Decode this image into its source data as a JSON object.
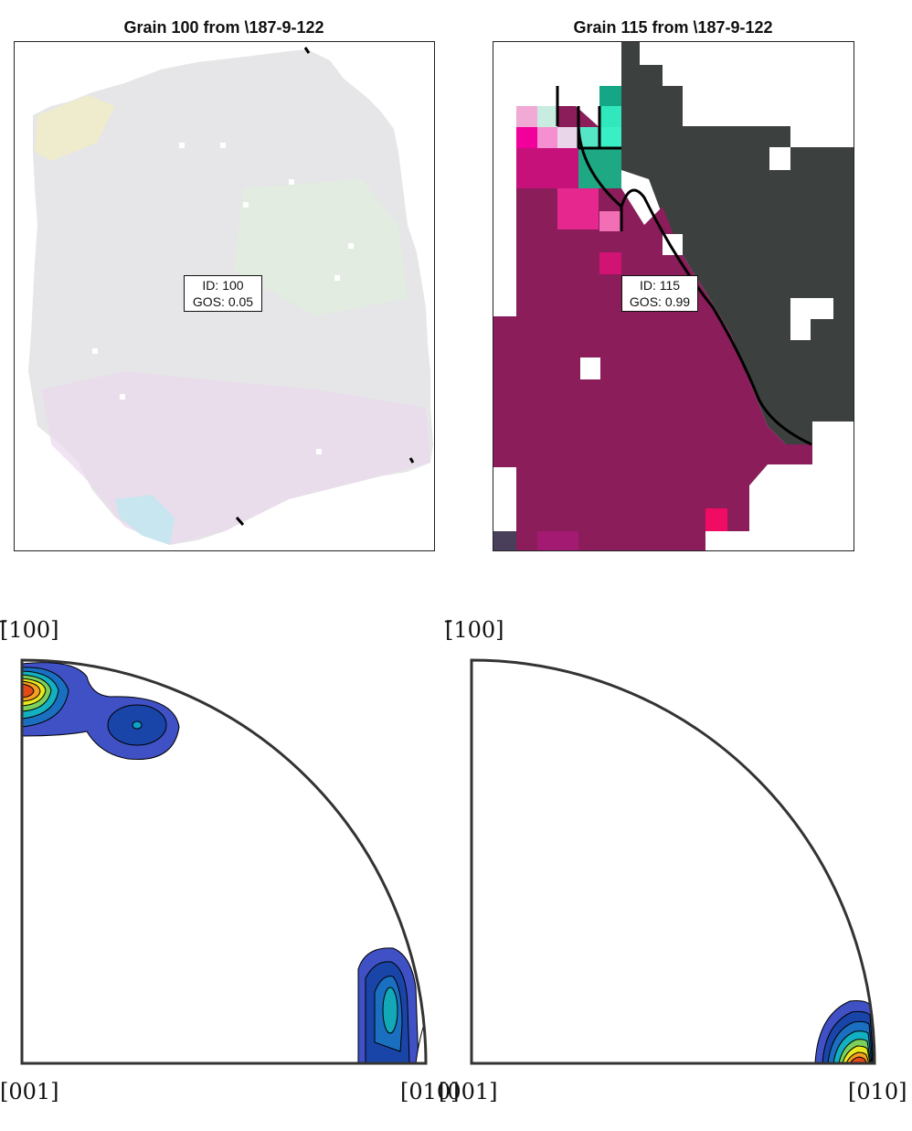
{
  "panels": [
    {
      "title": "Grain 100 from \\187-9-122",
      "id_label": "ID: 100",
      "gos_label": "GOS: 0.05",
      "pole_figure": {
        "top_label": "[̄100]",
        "bottom_left_label": "[001]",
        "bottom_right_label": "[010]"
      }
    },
    {
      "title": "Grain 115 from \\187-9-122",
      "id_label": "ID: 115",
      "gos_label": "GOS: 0.99",
      "pole_figure": {
        "top_label": "[̄100]",
        "bottom_left_label": "[001]",
        "bottom_right_label": "[010]"
      }
    }
  ],
  "colors": {
    "grain_light": "#e8e8ea",
    "magenta_dark": "#8a1d5a",
    "dark_grey": "#3c403e",
    "teal": "#1fa884",
    "contour_blue": "#3f51c4",
    "contour_red": "#e34a1a"
  }
}
